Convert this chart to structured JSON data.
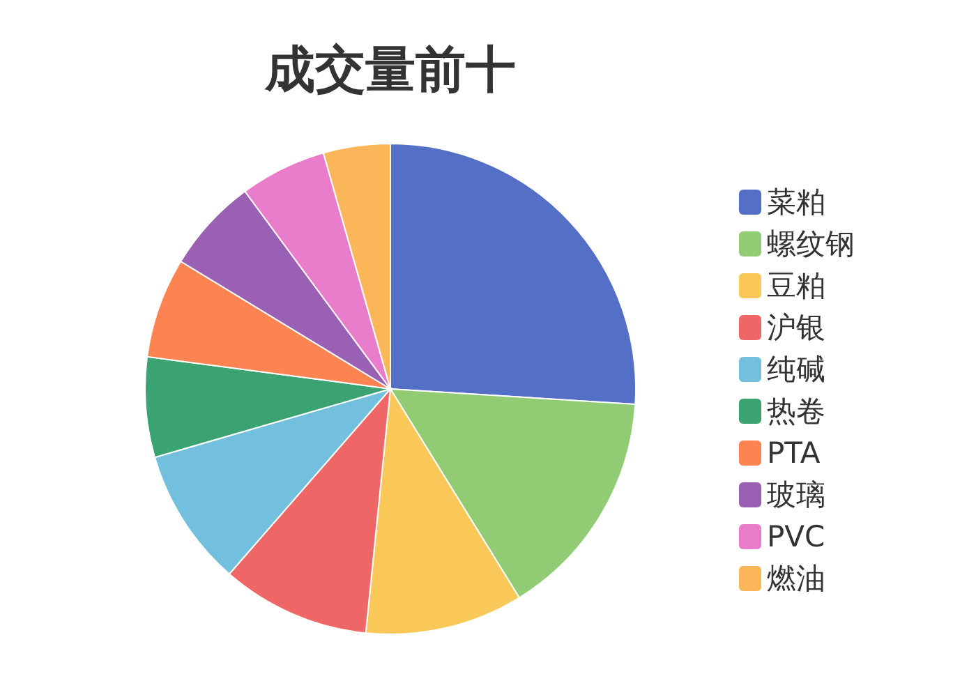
{
  "chart_data": {
    "type": "pie",
    "title": "成交量前十",
    "categories": [
      "菜粕",
      "螺纹钢",
      "豆粕",
      "沪银",
      "纯碱",
      "热卷",
      "PTA",
      "玻璃",
      "PVC",
      "燃油"
    ],
    "values": [
      26,
      15.2,
      10.4,
      9.8,
      9.1,
      6.6,
      6.6,
      6.2,
      5.7,
      4.4
    ],
    "colors": [
      "#5470c6",
      "#91cc75",
      "#fac858",
      "#ee6666",
      "#73c0de",
      "#3ba272",
      "#fc8452",
      "#9a60b4",
      "#ea7ccc",
      "#fbb65a"
    ],
    "legend": "right"
  }
}
